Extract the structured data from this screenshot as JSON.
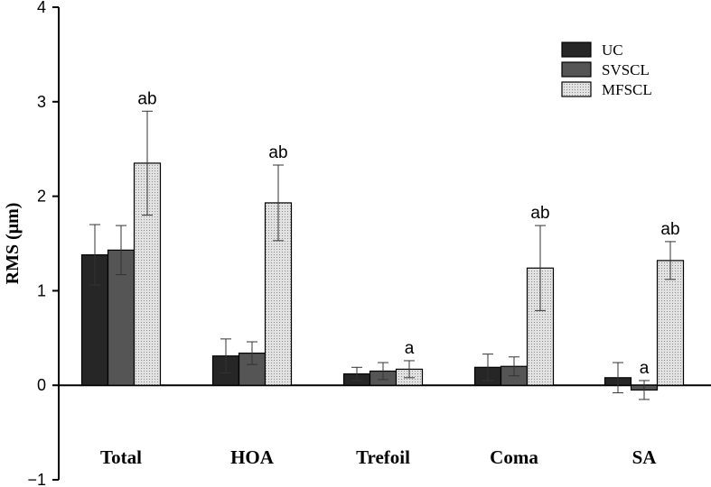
{
  "chart_data": {
    "type": "bar",
    "title": "",
    "xlabel": "",
    "ylabel": "RMS (μm)",
    "ylim": [
      -1,
      4
    ],
    "yticks": [
      -1,
      0,
      1,
      2,
      3,
      4
    ],
    "ytick_labels": [
      "−1",
      "0",
      "1",
      "2",
      "3",
      "4"
    ],
    "grid": false,
    "legend_position": "top-right",
    "categories": [
      "Total",
      "HOA",
      "Trefoil",
      "Coma",
      "SA"
    ],
    "series": [
      {
        "name": "UC",
        "color": "#262626",
        "pattern": "solid",
        "values": [
          1.38,
          0.31,
          0.12,
          0.19,
          0.08
        ],
        "errors": [
          0.32,
          0.18,
          0.07,
          0.14,
          0.16
        ],
        "annotations": [
          "",
          "",
          "",
          "",
          ""
        ]
      },
      {
        "name": "SVSCL",
        "color": "#555555",
        "pattern": "solid",
        "values": [
          1.43,
          0.34,
          0.15,
          0.2,
          -0.05
        ],
        "errors": [
          0.26,
          0.12,
          0.09,
          0.1,
          0.1
        ],
        "annotations": [
          "",
          "",
          "",
          "",
          "a"
        ]
      },
      {
        "name": "MFSCL",
        "color": "#d0d0d0",
        "pattern": "dotted",
        "values": [
          2.35,
          1.93,
          0.17,
          1.24,
          1.32
        ],
        "errors": [
          0.55,
          0.4,
          0.09,
          0.45,
          0.2
        ],
        "annotations": [
          "ab",
          "ab",
          "a",
          "ab",
          "ab"
        ]
      }
    ]
  }
}
